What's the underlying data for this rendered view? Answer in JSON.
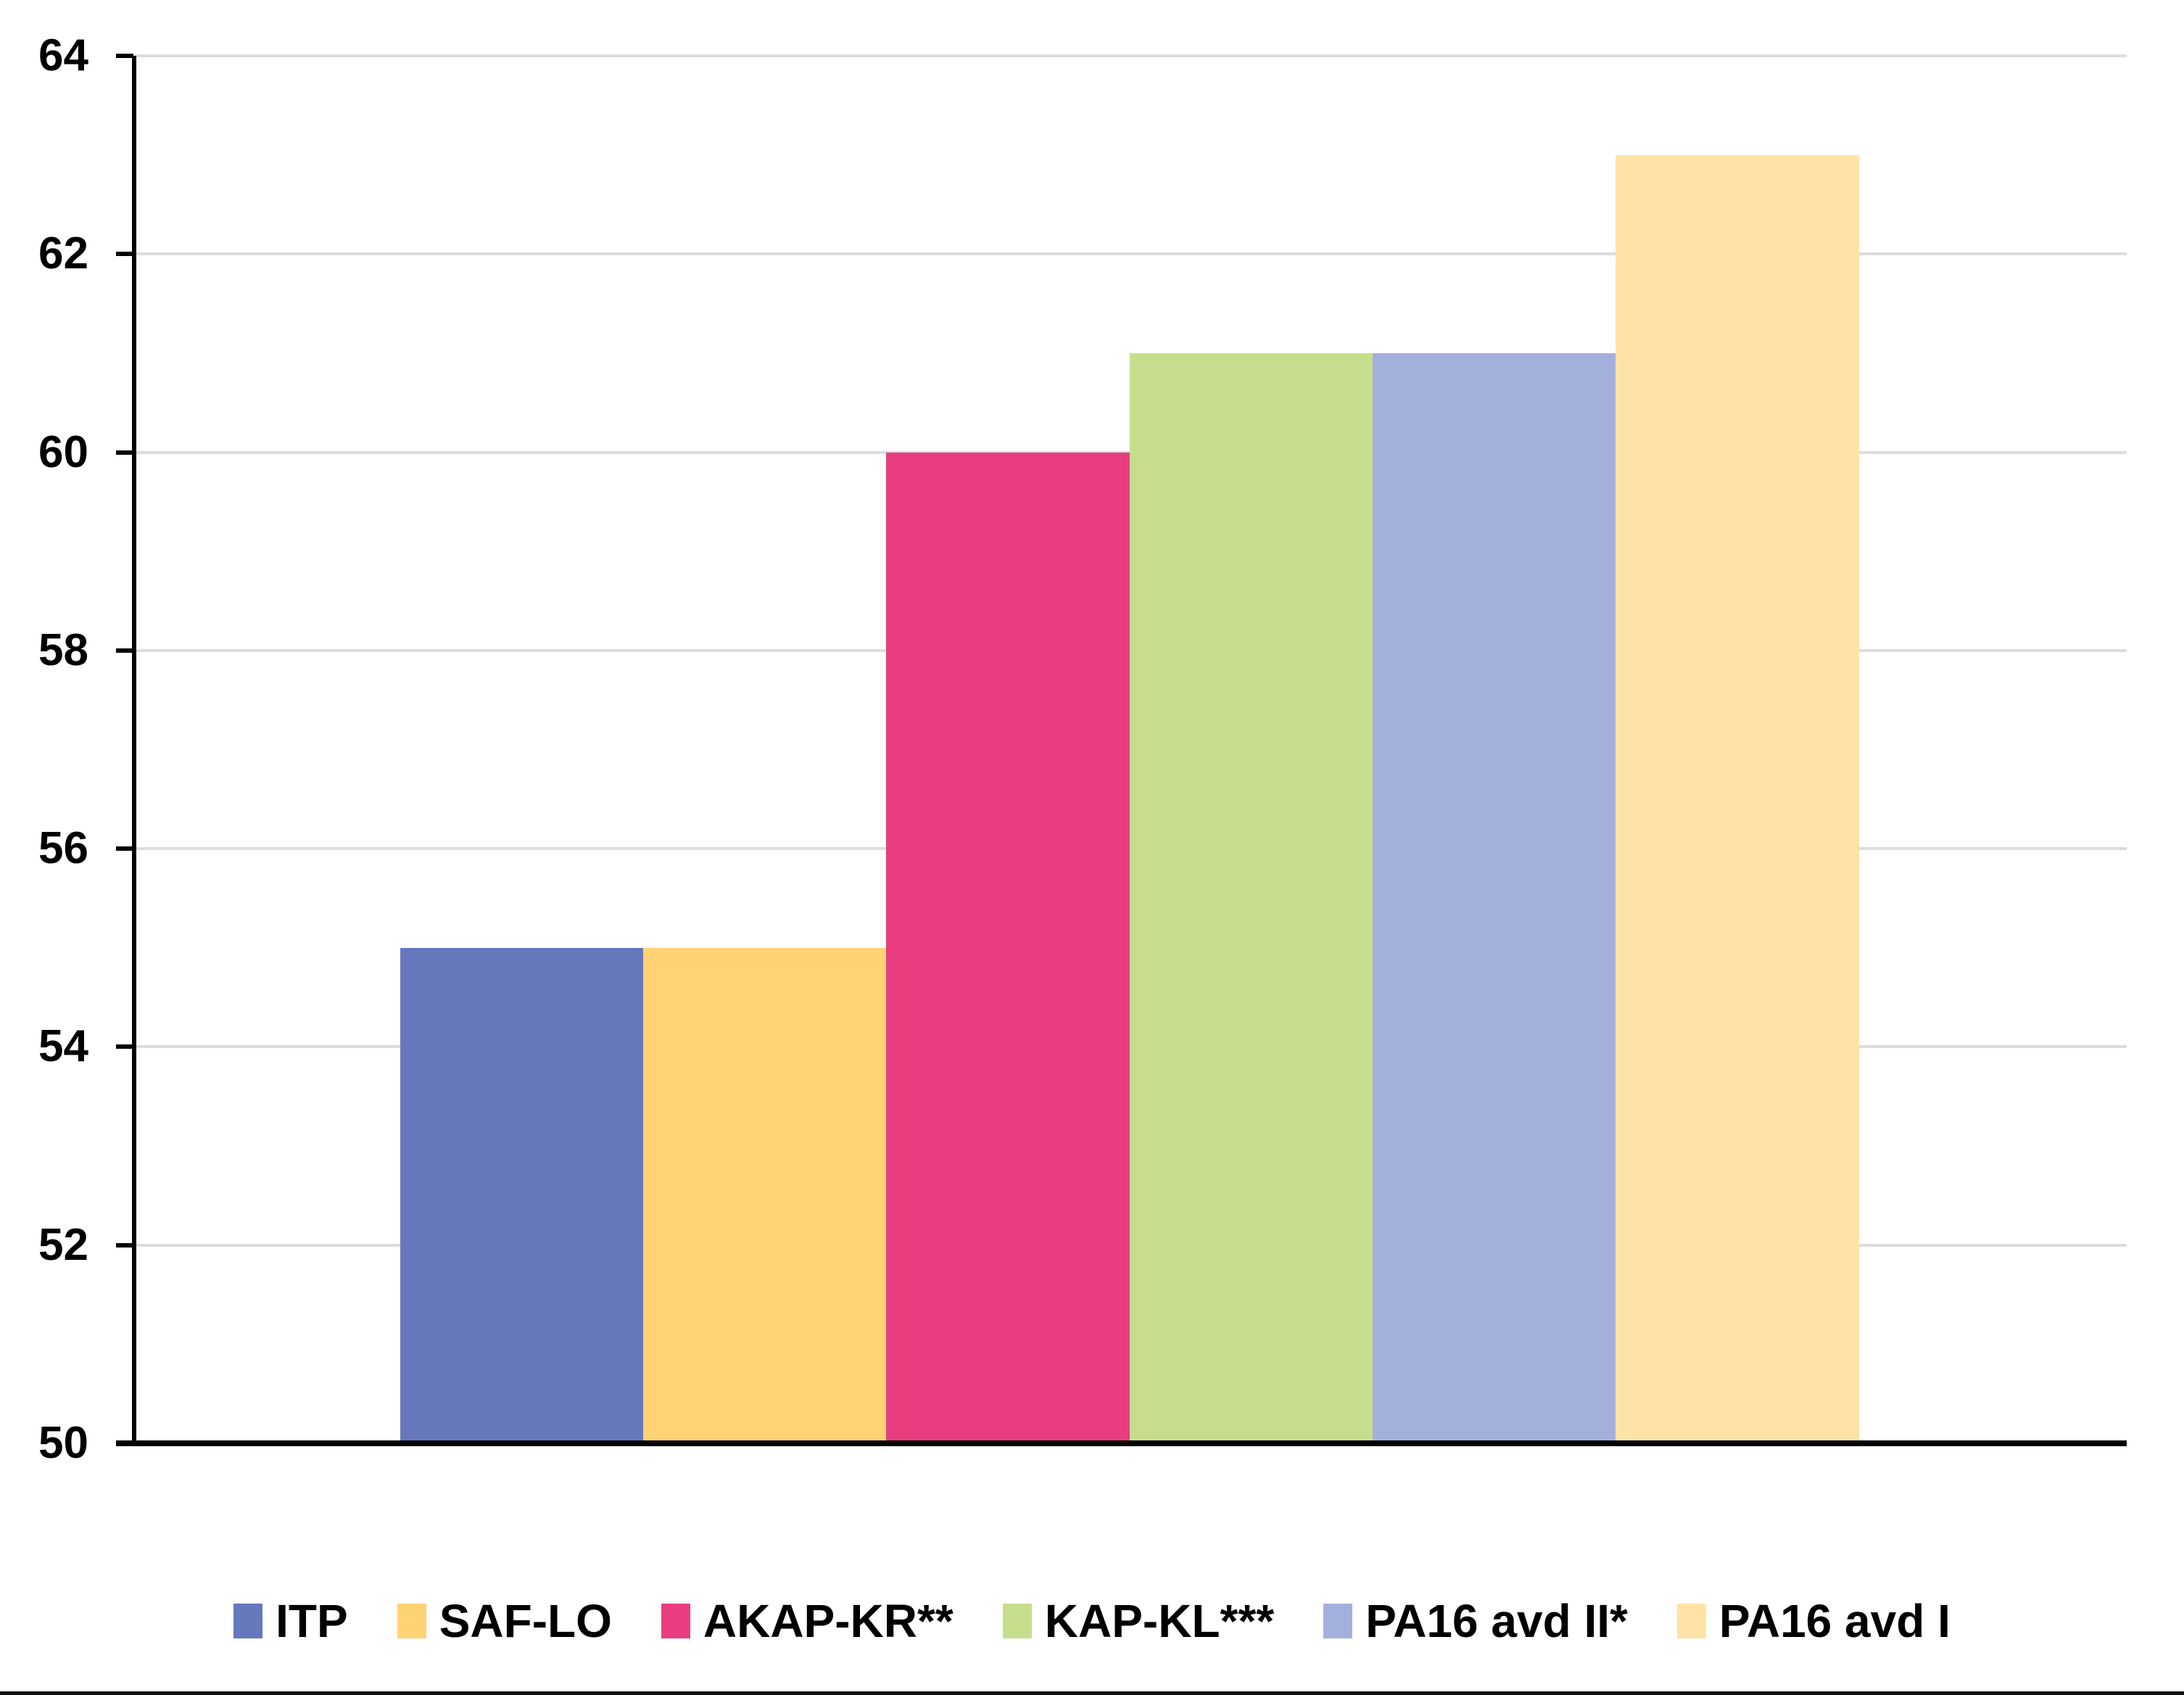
{
  "chart_data": {
    "type": "bar",
    "title": "",
    "xlabel": "",
    "ylabel": "",
    "categories": [
      ""
    ],
    "series": [
      {
        "name": "ITP",
        "value": 55,
        "color": "#6678BC"
      },
      {
        "name": "SAF-LO",
        "value": 55,
        "color": "#FFD373"
      },
      {
        "name": "AKAP-KR**",
        "value": 60,
        "color": "#E83E80"
      },
      {
        "name": "KAP-KL***",
        "value": 61,
        "color": "#C6DE8C"
      },
      {
        "name": "PA16 avd II*",
        "value": 61,
        "color": "#A4B0DC"
      },
      {
        "name": "PA16 avd I",
        "value": 63,
        "color": "#FFE3A6"
      }
    ],
    "ylim": [
      50,
      64
    ],
    "yticks": [
      50,
      52,
      54,
      56,
      58,
      60,
      62,
      64
    ],
    "grid": true,
    "gridline_color": "#dcdcdc",
    "axis_color": "#000000",
    "text_color": "#000000",
    "legend_position": "bottom",
    "bottom_rule_color": "#111111"
  }
}
